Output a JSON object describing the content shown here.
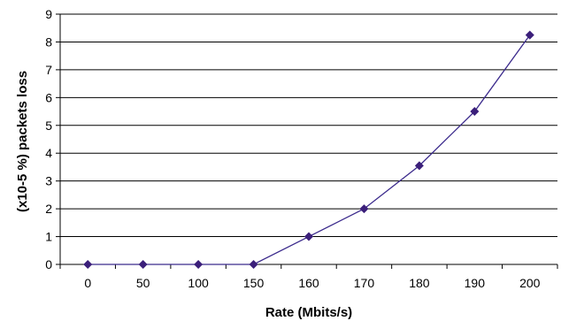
{
  "chart_data": {
    "type": "line",
    "categories": [
      "0",
      "50",
      "100",
      "150",
      "160",
      "170",
      "180",
      "190",
      "200"
    ],
    "series": [
      {
        "values": [
          0,
          0,
          0,
          0,
          1,
          2,
          3.55,
          5.5,
          8.25
        ]
      }
    ],
    "xlabel": "Rate (Mbits/s)",
    "ylabel": "(x10-5 %) packets loss",
    "ylim": [
      0,
      9
    ],
    "yticks": [
      "0",
      "1",
      "2",
      "3",
      "4",
      "5",
      "6",
      "7",
      "8",
      "9"
    ],
    "grid": true,
    "legend": "none",
    "line_color": "#3b2a8c",
    "marker_color": "#3b1f7a",
    "marker": "diamond"
  }
}
